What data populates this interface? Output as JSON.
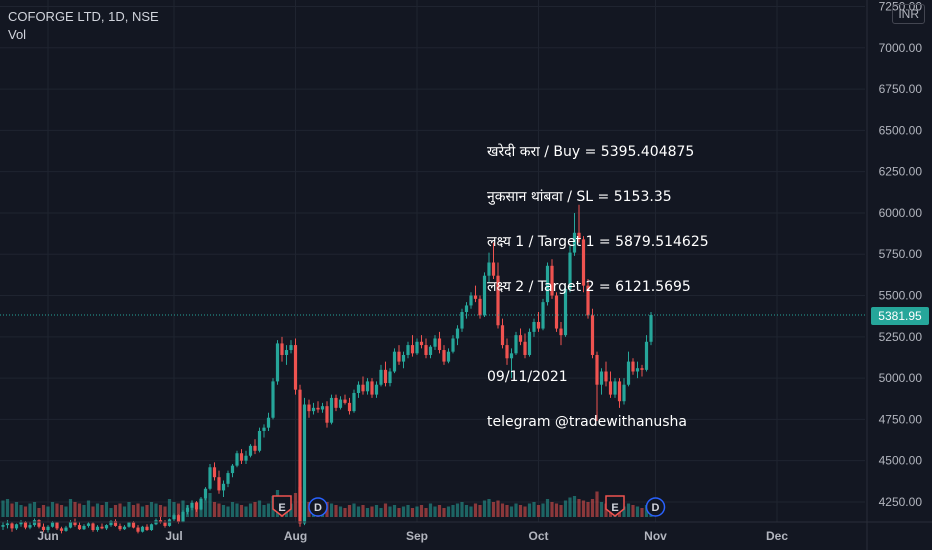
{
  "header": {
    "title": "COFORGE LTD, 1D, NSE",
    "indicator": "Vol",
    "currency": "INR"
  },
  "note": {
    "lines": [
      "खरेदी करा / Buy = 5395.404875",
      "नुकसान थांबवा / SL = 5153.35",
      "लक्ष्य 1 / Target 1 = 5879.514625",
      "लक्ष्य 2 / Target 2 = 6121.5695",
      "",
      "09/11/2021",
      "telegram @tradewithanusha"
    ]
  },
  "last_price": "5381.95",
  "last_price_value": 5381.95,
  "colors": {
    "up": "#26a69a",
    "down": "#ef5350",
    "bg": "#131722",
    "grid": "#1f2430"
  },
  "events": [
    {
      "label": "E",
      "type": "earnings",
      "color": "#ef5350",
      "date_index": 62
    },
    {
      "label": "D",
      "type": "dividend",
      "color": "#2962ff",
      "date_index": 70
    },
    {
      "label": "E",
      "type": "earnings",
      "color": "#ef5350",
      "date_index": 136
    },
    {
      "label": "D",
      "type": "dividend",
      "color": "#2962ff",
      "date_index": 145
    }
  ],
  "chart_data": {
    "type": "candlestick",
    "title": "COFORGE LTD, 1D, NSE",
    "y_ticks": [
      "7250.00",
      "7000.00",
      "6750.00",
      "6500.00",
      "6250.00",
      "6000.00",
      "5750.00",
      "5500.00",
      "5250.00",
      "5000.00",
      "4750.00",
      "4500.00",
      "4250.00"
    ],
    "y_tick_values": [
      7250,
      7000,
      6750,
      6500,
      6250,
      6000,
      5750,
      5500,
      5250,
      5000,
      4750,
      4500,
      4250
    ],
    "x_ticks": [
      "Jun",
      "Jul",
      "Aug",
      "Sep",
      "Oct",
      "Nov",
      "Dec"
    ],
    "x_tick_index": [
      10,
      38,
      65,
      92,
      119,
      145,
      172
    ],
    "ylim": [
      4050,
      7350
    ],
    "x_count": 205,
    "candles": [
      [
        4100,
        4130,
        4080,
        4110
      ],
      [
        4110,
        4140,
        4090,
        4120
      ],
      [
        4120,
        4130,
        4070,
        4090
      ],
      [
        4090,
        4120,
        4080,
        4115
      ],
      [
        4115,
        4140,
        4100,
        4130
      ],
      [
        4130,
        4135,
        4085,
        4095
      ],
      [
        4095,
        4125,
        4085,
        4110
      ],
      [
        4110,
        4150,
        4100,
        4140
      ],
      [
        4140,
        4145,
        4090,
        4100
      ],
      [
        4100,
        4120,
        4070,
        4080
      ],
      [
        4080,
        4110,
        4065,
        4100
      ],
      [
        4100,
        4135,
        4095,
        4125
      ],
      [
        4125,
        4130,
        4080,
        4090
      ],
      [
        4090,
        4100,
        4060,
        4075
      ],
      [
        4075,
        4105,
        4070,
        4095
      ],
      [
        4095,
        4140,
        4090,
        4130
      ],
      [
        4130,
        4150,
        4100,
        4110
      ],
      [
        4110,
        4125,
        4080,
        4085
      ],
      [
        4085,
        4115,
        4080,
        4105
      ],
      [
        4105,
        4130,
        4095,
        4120
      ],
      [
        4120,
        4125,
        4070,
        4080
      ],
      [
        4080,
        4110,
        4070,
        4100
      ],
      [
        4100,
        4120,
        4085,
        4090
      ],
      [
        4090,
        4115,
        4080,
        4110
      ],
      [
        4110,
        4140,
        4100,
        4135
      ],
      [
        4135,
        4145,
        4100,
        4105
      ],
      [
        4105,
        4120,
        4075,
        4085
      ],
      [
        4085,
        4110,
        4080,
        4100
      ],
      [
        4100,
        4130,
        4095,
        4125
      ],
      [
        4125,
        4135,
        4090,
        4095
      ],
      [
        4095,
        4110,
        4060,
        4070
      ],
      [
        4070,
        4105,
        4065,
        4100
      ],
      [
        4100,
        4115,
        4075,
        4080
      ],
      [
        4080,
        4120,
        4075,
        4115
      ],
      [
        4115,
        4150,
        4110,
        4140
      ],
      [
        4140,
        4160,
        4120,
        4125
      ],
      [
        4125,
        4140,
        4095,
        4105
      ],
      [
        4105,
        4150,
        4100,
        4145
      ],
      [
        4145,
        4180,
        4135,
        4170
      ],
      [
        4170,
        4175,
        4120,
        4130
      ],
      [
        4130,
        4200,
        4125,
        4190
      ],
      [
        4190,
        4230,
        4175,
        4215
      ],
      [
        4215,
        4260,
        4200,
        4245
      ],
      [
        4245,
        4255,
        4190,
        4205
      ],
      [
        4205,
        4280,
        4200,
        4270
      ],
      [
        4270,
        4340,
        4260,
        4330
      ],
      [
        4330,
        4480,
        4320,
        4460
      ],
      [
        4460,
        4490,
        4380,
        4400
      ],
      [
        4400,
        4440,
        4300,
        4320
      ],
      [
        4320,
        4380,
        4280,
        4360
      ],
      [
        4360,
        4440,
        4340,
        4425
      ],
      [
        4425,
        4480,
        4400,
        4470
      ],
      [
        4470,
        4560,
        4460,
        4545
      ],
      [
        4545,
        4570,
        4480,
        4500
      ],
      [
        4500,
        4560,
        4480,
        4530
      ],
      [
        4530,
        4600,
        4520,
        4590
      ],
      [
        4590,
        4630,
        4540,
        4560
      ],
      [
        4560,
        4700,
        4550,
        4680
      ],
      [
        4680,
        4720,
        4640,
        4700
      ],
      [
        4700,
        4790,
        4680,
        4760
      ],
      [
        4760,
        5000,
        4750,
        4980
      ],
      [
        4980,
        5230,
        4960,
        5210
      ],
      [
        5210,
        5250,
        5100,
        5140
      ],
      [
        5140,
        5200,
        5080,
        5170
      ],
      [
        5170,
        5230,
        5150,
        5200
      ],
      [
        5200,
        5240,
        4900,
        4930
      ],
      [
        4930,
        4960,
        4100,
        4120
      ],
      [
        4120,
        4880,
        4110,
        4840
      ],
      [
        4840,
        4870,
        4760,
        4800
      ],
      [
        4800,
        4850,
        4780,
        4820
      ],
      [
        4820,
        4860,
        4790,
        4810
      ],
      [
        4810,
        4850,
        4790,
        4830
      ],
      [
        4830,
        4860,
        4700,
        4730
      ],
      [
        4730,
        4900,
        4720,
        4880
      ],
      [
        4880,
        4900,
        4800,
        4820
      ],
      [
        4820,
        4890,
        4810,
        4870
      ],
      [
        4870,
        4900,
        4840,
        4850
      ],
      [
        4850,
        4880,
        4780,
        4800
      ],
      [
        4800,
        4930,
        4790,
        4910
      ],
      [
        4910,
        4980,
        4880,
        4960
      ],
      [
        4960,
        5010,
        4900,
        4920
      ],
      [
        4920,
        5000,
        4900,
        4980
      ],
      [
        4980,
        5000,
        4880,
        4900
      ],
      [
        4900,
        4980,
        4880,
        4960
      ],
      [
        4960,
        5080,
        4950,
        5050
      ],
      [
        5050,
        5100,
        4950,
        4970
      ],
      [
        4970,
        5060,
        4950,
        5040
      ],
      [
        5040,
        5180,
        5030,
        5160
      ],
      [
        5160,
        5200,
        5080,
        5100
      ],
      [
        5100,
        5160,
        5060,
        5140
      ],
      [
        5140,
        5220,
        5120,
        5200
      ],
      [
        5200,
        5260,
        5130,
        5150
      ],
      [
        5150,
        5240,
        5140,
        5220
      ],
      [
        5220,
        5260,
        5180,
        5200
      ],
      [
        5200,
        5240,
        5120,
        5140
      ],
      [
        5140,
        5200,
        5120,
        5190
      ],
      [
        5190,
        5260,
        5170,
        5240
      ],
      [
        5240,
        5280,
        5150,
        5170
      ],
      [
        5170,
        5200,
        5080,
        5100
      ],
      [
        5100,
        5180,
        5090,
        5160
      ],
      [
        5160,
        5260,
        5150,
        5240
      ],
      [
        5240,
        5320,
        5200,
        5300
      ],
      [
        5300,
        5420,
        5280,
        5400
      ],
      [
        5400,
        5460,
        5360,
        5440
      ],
      [
        5440,
        5520,
        5420,
        5500
      ],
      [
        5500,
        5560,
        5460,
        5480
      ],
      [
        5480,
        5500,
        5360,
        5380
      ],
      [
        5380,
        5640,
        5370,
        5620
      ],
      [
        5620,
        5760,
        5580,
        5700
      ],
      [
        5700,
        5820,
        5600,
        5620
      ],
      [
        5620,
        5700,
        5300,
        5320
      ],
      [
        5320,
        5360,
        5180,
        5200
      ],
      [
        5200,
        5240,
        5080,
        5120
      ],
      [
        5120,
        5180,
        5000,
        5150
      ],
      [
        5150,
        5280,
        5140,
        5260
      ],
      [
        5260,
        5300,
        5200,
        5220
      ],
      [
        5220,
        5270,
        5120,
        5140
      ],
      [
        5140,
        5300,
        5130,
        5280
      ],
      [
        5280,
        5360,
        5250,
        5340
      ],
      [
        5340,
        5400,
        5280,
        5300
      ],
      [
        5300,
        5480,
        5290,
        5460
      ],
      [
        5460,
        5700,
        5440,
        5680
      ],
      [
        5680,
        5720,
        5480,
        5500
      ],
      [
        5500,
        5520,
        5280,
        5300
      ],
      [
        5300,
        5340,
        5200,
        5260
      ],
      [
        5260,
        5560,
        5250,
        5540
      ],
      [
        5540,
        5800,
        5520,
        5760
      ],
      [
        5760,
        6000,
        5740,
        5880
      ],
      [
        5880,
        6050,
        5820,
        5840
      ],
      [
        5840,
        5860,
        5520,
        5560
      ],
      [
        5560,
        5600,
        5360,
        5380
      ],
      [
        5380,
        5420,
        5120,
        5140
      ],
      [
        5140,
        5160,
        4740,
        4960
      ],
      [
        4960,
        5060,
        4900,
        5040
      ],
      [
        5040,
        5100,
        4950,
        4980
      ],
      [
        4980,
        5040,
        4880,
        4900
      ],
      [
        4900,
        5000,
        4880,
        4980
      ],
      [
        4980,
        5000,
        4820,
        4860
      ],
      [
        4860,
        5000,
        4840,
        4960
      ],
      [
        4960,
        5160,
        4950,
        5100
      ],
      [
        5100,
        5120,
        5020,
        5040
      ],
      [
        5040,
        5100,
        5000,
        5060
      ],
      [
        5060,
        5080,
        5010,
        5050
      ],
      [
        5050,
        5260,
        5040,
        5220
      ],
      [
        5220,
        5400,
        5200,
        5381.95
      ]
    ],
    "volumes": [
      0.55,
      0.6,
      0.45,
      0.5,
      0.4,
      0.35,
      0.45,
      0.5,
      0.3,
      0.4,
      0.35,
      0.5,
      0.45,
      0.4,
      0.35,
      0.6,
      0.5,
      0.45,
      0.4,
      0.55,
      0.35,
      0.45,
      0.4,
      0.5,
      0.3,
      0.4,
      0.45,
      0.35,
      0.5,
      0.4,
      0.45,
      0.35,
      0.4,
      0.5,
      0.45,
      0.4,
      0.35,
      0.6,
      0.5,
      0.45,
      0.55,
      0.4,
      0.35,
      0.5,
      0.45,
      0.6,
      0.8,
      0.5,
      0.45,
      0.4,
      0.35,
      0.5,
      0.45,
      0.4,
      0.35,
      0.45,
      0.5,
      0.55,
      0.4,
      0.45,
      0.7,
      0.9,
      0.6,
      0.5,
      0.45,
      0.8,
      1.0,
      0.9,
      0.5,
      0.45,
      0.4,
      0.35,
      0.5,
      0.45,
      0.4,
      0.35,
      0.3,
      0.4,
      0.45,
      0.35,
      0.4,
      0.3,
      0.35,
      0.4,
      0.3,
      0.45,
      0.35,
      0.4,
      0.3,
      0.35,
      0.4,
      0.3,
      0.35,
      0.4,
      0.3,
      0.45,
      0.35,
      0.4,
      0.3,
      0.35,
      0.4,
      0.45,
      0.5,
      0.4,
      0.35,
      0.45,
      0.4,
      0.55,
      0.6,
      0.5,
      0.55,
      0.45,
      0.4,
      0.35,
      0.45,
      0.4,
      0.35,
      0.45,
      0.5,
      0.4,
      0.45,
      0.6,
      0.5,
      0.45,
      0.4,
      0.55,
      0.65,
      0.7,
      0.6,
      0.55,
      0.5,
      0.6,
      0.85,
      0.5,
      0.45,
      0.4,
      0.35,
      0.4,
      0.35,
      0.45,
      0.4,
      0.35,
      0.3,
      0.4,
      0.45
    ]
  }
}
